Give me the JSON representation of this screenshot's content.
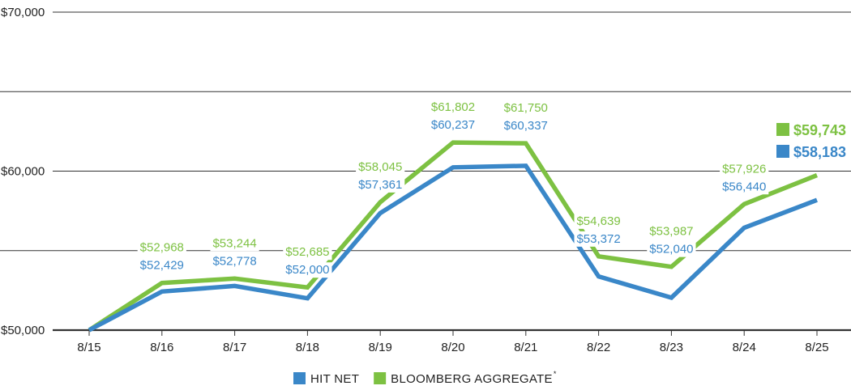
{
  "colors": {
    "hit_net": "#3a87c8",
    "bloomberg": "#7dc142",
    "grid": "#333333",
    "text": "#222222"
  },
  "chart_data": {
    "type": "line",
    "title": "",
    "xlabel": "",
    "ylabel": "",
    "categories": [
      "8/15",
      "8/16",
      "8/17",
      "8/18",
      "8/19",
      "8/20",
      "8/21",
      "8/22",
      "8/23",
      "8/24",
      "8/25"
    ],
    "ylim": [
      50000,
      70000
    ],
    "yticks": [
      50000,
      60000,
      70000
    ],
    "ytick_labels": [
      "$50,000",
      "$60,000",
      "$70,000"
    ],
    "minor_gridlines": [
      55000,
      65000
    ],
    "grid": true,
    "legend": {
      "position": "bottom-center",
      "items": [
        {
          "name": "HIT NET",
          "sup": ""
        },
        {
          "name": "BLOOMBERG AGGREGATE",
          "sup": "*"
        }
      ]
    },
    "series": [
      {
        "name": "BLOOMBERG AGGREGATE",
        "color": "#7dc142",
        "values": [
          50000,
          52968,
          53244,
          52685,
          58045,
          61802,
          61750,
          54639,
          53987,
          57926,
          59743
        ],
        "labels": [
          "",
          "$52,968",
          "$53,244",
          "$52,685",
          "$58,045",
          "$61,802",
          "$61,750",
          "$54,639",
          "$53,987",
          "$57,926",
          ""
        ],
        "end_label": "$59,743"
      },
      {
        "name": "HIT NET",
        "color": "#3a87c8",
        "values": [
          50000,
          52429,
          52778,
          52000,
          57361,
          60237,
          60337,
          53372,
          52040,
          56440,
          58183
        ],
        "labels": [
          "",
          "$52,429",
          "$52,778",
          "$52,000",
          "$57,361",
          "$60,237",
          "$60,337",
          "$53,372",
          "$52,040",
          "$56,440",
          ""
        ],
        "end_label": "$58,183"
      }
    ]
  }
}
